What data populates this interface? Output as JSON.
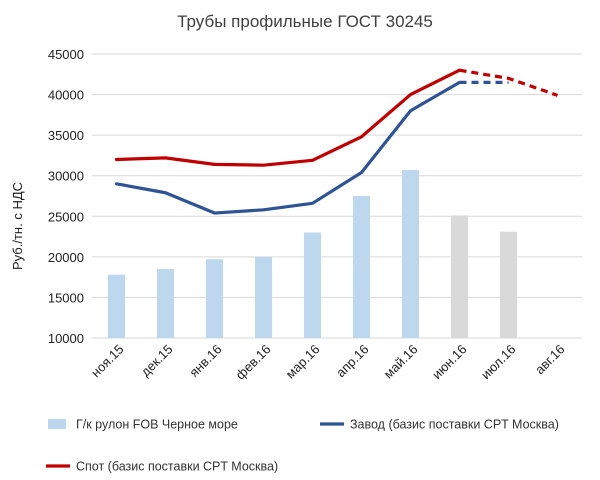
{
  "chart_data": {
    "type": "bar",
    "title": "Трубы профильные ГОСТ 30245",
    "ylabel": "Руб./тн. с НДС",
    "xlabel": "",
    "ylim": [
      10000,
      45000
    ],
    "yticks": [
      10000,
      15000,
      20000,
      25000,
      30000,
      35000,
      40000,
      45000
    ],
    "yticks_labels": [
      "10000",
      "15000",
      "20000",
      "25000",
      "30000",
      "35000",
      "40000",
      "45000"
    ],
    "grid": true,
    "legend_position": "bottom",
    "categories": [
      "ноя.15",
      "дек.15",
      "янв.16",
      "фев.16",
      "мар.16",
      "апр.16",
      "май.16",
      "июн.16",
      "июл.16",
      "авг.16"
    ],
    "series": [
      {
        "name": "Г/к рулон FOB Черное море",
        "type": "bar",
        "values": [
          17800,
          18500,
          19700,
          20000,
          23000,
          27500,
          30700,
          25100,
          23100,
          null
        ],
        "colors": [
          "#bdd7ee",
          "#bdd7ee",
          "#bdd7ee",
          "#bdd7ee",
          "#bdd7ee",
          "#bdd7ee",
          "#bdd7ee",
          "#d9d9d9",
          "#d9d9d9",
          "#d9d9d9"
        ]
      },
      {
        "name": "Завод (базис поставки CPT Москва)",
        "type": "line",
        "color": "#2f5496",
        "values": [
          29000,
          27900,
          25400,
          25800,
          26600,
          30400,
          38000,
          41500,
          41500,
          null
        ],
        "dashed_from_index": 7
      },
      {
        "name": "Спот (базис поставки CPT Москва)",
        "type": "line",
        "color": "#c00000",
        "values": [
          32000,
          32200,
          31400,
          31300,
          31900,
          34800,
          40000,
          43000,
          42000,
          39900
        ],
        "dashed_from_index": 7
      }
    ]
  }
}
